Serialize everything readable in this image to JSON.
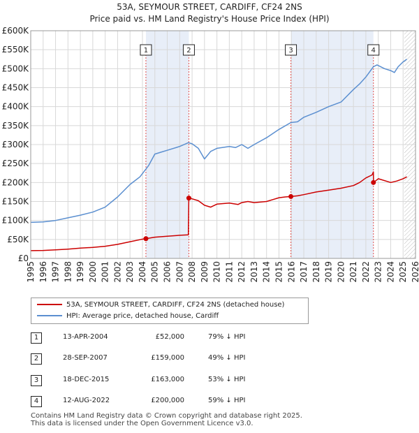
{
  "title_line1": "53A, SEYMOUR STREET, CARDIFF, CF24 2NS",
  "title_line2": "Price paid vs. HM Land Registry's House Price Index (HPI)",
  "chart_data": {
    "type": "line",
    "xlim": [
      1995,
      2026
    ],
    "ylim": [
      0,
      600000
    ],
    "x_ticks": [
      1995,
      1996,
      1997,
      1998,
      1999,
      2000,
      2001,
      2002,
      2003,
      2004,
      2005,
      2006,
      2007,
      2008,
      2009,
      2010,
      2011,
      2012,
      2013,
      2014,
      2015,
      2016,
      2017,
      2018,
      2019,
      2020,
      2021,
      2022,
      2023,
      2024,
      2025,
      2026
    ],
    "y_ticks": [
      {
        "value": 0,
        "label": "£0"
      },
      {
        "value": 50000,
        "label": "£50K"
      },
      {
        "value": 100000,
        "label": "£100K"
      },
      {
        "value": 150000,
        "label": "£150K"
      },
      {
        "value": 200000,
        "label": "£200K"
      },
      {
        "value": 250000,
        "label": "£250K"
      },
      {
        "value": 300000,
        "label": "£300K"
      },
      {
        "value": 350000,
        "label": "£350K"
      },
      {
        "value": 400000,
        "label": "£400K"
      },
      {
        "value": 450000,
        "label": "£450K"
      },
      {
        "value": 500000,
        "label": "£500K"
      },
      {
        "value": 550000,
        "label": "£550K"
      },
      {
        "value": 600000,
        "label": "£600K"
      }
    ],
    "projection_start": 2025.1,
    "colors": {
      "property": "#cc0000",
      "hpi": "#5b8fd0",
      "band": "#e8eef8",
      "marker_line": "#e05050",
      "grid": "#d8d8d8",
      "hatch": "#bbbbbb"
    },
    "series": [
      {
        "name": "53A, SEYMOUR STREET, CARDIFF, CF24 2NS (detached house)",
        "points": [
          [
            1995.0,
            20500
          ],
          [
            1996.0,
            21000
          ],
          [
            1997.0,
            22500
          ],
          [
            1998.0,
            24500
          ],
          [
            1999.0,
            27000
          ],
          [
            2000.0,
            29000
          ],
          [
            2001.0,
            32000
          ],
          [
            2002.0,
            37000
          ],
          [
            2003.0,
            44000
          ],
          [
            2003.9,
            50000
          ],
          [
            2004.28,
            52000
          ],
          [
            2005.0,
            56000
          ],
          [
            2006.0,
            58500
          ],
          [
            2007.0,
            61000
          ],
          [
            2007.7,
            62000
          ],
          [
            2007.74,
            159000
          ],
          [
            2008.0,
            157000
          ],
          [
            2008.5,
            152000
          ],
          [
            2009.0,
            140000
          ],
          [
            2009.5,
            135000
          ],
          [
            2010.0,
            143000
          ],
          [
            2011.0,
            146000
          ],
          [
            2011.7,
            142000
          ],
          [
            2012.0,
            147000
          ],
          [
            2012.5,
            150000
          ],
          [
            2013.0,
            147000
          ],
          [
            2014.0,
            150000
          ],
          [
            2014.5,
            155000
          ],
          [
            2015.0,
            160000
          ],
          [
            2015.5,
            162000
          ],
          [
            2015.96,
            163000
          ],
          [
            2016.5,
            165000
          ],
          [
            2017.0,
            168000
          ],
          [
            2018.0,
            175000
          ],
          [
            2019.0,
            180000
          ],
          [
            2020.0,
            185000
          ],
          [
            2021.0,
            192000
          ],
          [
            2021.5,
            200000
          ],
          [
            2022.0,
            212000
          ],
          [
            2022.5,
            220000
          ],
          [
            2022.61,
            228000
          ],
          [
            2022.62,
            200000
          ],
          [
            2023.0,
            210000
          ],
          [
            2024.0,
            200000
          ],
          [
            2024.5,
            204000
          ],
          [
            2025.0,
            210000
          ],
          [
            2025.3,
            215000
          ]
        ]
      },
      {
        "name": "HPI: Average price, detached house, Cardiff",
        "points": [
          [
            1995.0,
            95000
          ],
          [
            1996.0,
            96000
          ],
          [
            1997.0,
            100000
          ],
          [
            1998.0,
            107000
          ],
          [
            1999.0,
            114000
          ],
          [
            2000.0,
            122000
          ],
          [
            2001.0,
            135000
          ],
          [
            2002.0,
            162000
          ],
          [
            2003.0,
            195000
          ],
          [
            2003.8,
            215000
          ],
          [
            2004.5,
            245000
          ],
          [
            2005.0,
            275000
          ],
          [
            2005.5,
            280000
          ],
          [
            2006.0,
            285000
          ],
          [
            2007.0,
            295000
          ],
          [
            2007.7,
            305000
          ],
          [
            2008.0,
            302000
          ],
          [
            2008.5,
            290000
          ],
          [
            2009.0,
            262000
          ],
          [
            2009.5,
            282000
          ],
          [
            2010.0,
            290000
          ],
          [
            2011.0,
            295000
          ],
          [
            2011.5,
            292000
          ],
          [
            2012.0,
            300000
          ],
          [
            2012.5,
            290000
          ],
          [
            2013.0,
            300000
          ],
          [
            2014.0,
            318000
          ],
          [
            2015.0,
            340000
          ],
          [
            2015.96,
            358000
          ],
          [
            2016.5,
            360000
          ],
          [
            2017.0,
            372000
          ],
          [
            2018.0,
            385000
          ],
          [
            2019.0,
            400000
          ],
          [
            2020.0,
            412000
          ],
          [
            2021.0,
            445000
          ],
          [
            2021.5,
            460000
          ],
          [
            2022.0,
            478000
          ],
          [
            2022.61,
            505000
          ],
          [
            2022.9,
            510000
          ],
          [
            2023.5,
            500000
          ],
          [
            2024.0,
            495000
          ],
          [
            2024.3,
            490000
          ],
          [
            2024.6,
            505000
          ],
          [
            2025.0,
            518000
          ],
          [
            2025.3,
            525000
          ]
        ]
      }
    ],
    "markers": [
      {
        "label": "1",
        "x": 2004.28,
        "y": 52000
      },
      {
        "label": "2",
        "x": 2007.74,
        "y": 159000
      },
      {
        "label": "3",
        "x": 2015.96,
        "y": 163000
      },
      {
        "label": "4",
        "x": 2022.61,
        "y": 200000
      }
    ],
    "bands": [
      [
        2004.28,
        2007.74
      ],
      [
        2015.96,
        2022.61
      ]
    ]
  },
  "legend": {
    "property": "53A, SEYMOUR STREET, CARDIFF, CF24 2NS (detached house)",
    "hpi": "HPI: Average price, detached house, Cardiff"
  },
  "transactions": [
    {
      "num": "1",
      "date": "13-APR-2004",
      "price": "£52,000",
      "hpi": "79% ↓ HPI"
    },
    {
      "num": "2",
      "date": "28-SEP-2007",
      "price": "£159,000",
      "hpi": "49% ↓ HPI"
    },
    {
      "num": "3",
      "date": "18-DEC-2015",
      "price": "£163,000",
      "hpi": "53% ↓ HPI"
    },
    {
      "num": "4",
      "date": "12-AUG-2022",
      "price": "£200,000",
      "hpi": "59% ↓ HPI"
    }
  ],
  "footer_line1": "Contains HM Land Registry data © Crown copyright and database right 2025.",
  "footer_line2": "This data is licensed under the Open Government Licence v3.0."
}
